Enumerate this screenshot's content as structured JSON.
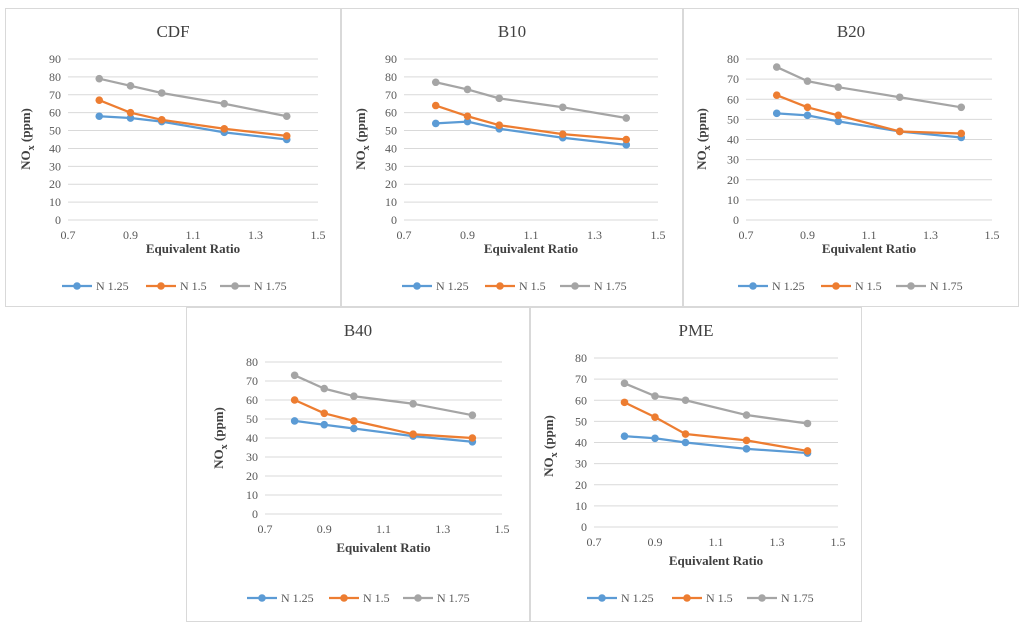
{
  "chart_data": [
    {
      "type": "line",
      "title": "CDF",
      "xlabel": "Equivalent Ratio",
      "ylabel": "NOx (ppm)",
      "ylabel_main": "NO",
      "ylabel_sub": "x",
      "ylabel_suffix": " (ppm)",
      "xlim": [
        0.7,
        1.5
      ],
      "ylim": [
        0,
        90
      ],
      "xticks": [
        "0.7",
        "0.9",
        "1.1",
        "1.3",
        "1.5"
      ],
      "yticks": [
        "0",
        "10",
        "20",
        "30",
        "40",
        "50",
        "60",
        "70",
        "80",
        "90"
      ],
      "x": [
        0.8,
        0.9,
        1.0,
        1.2,
        1.4
      ],
      "series": [
        {
          "name": "N 1.25",
          "color": "#5b9bd5",
          "values": [
            58,
            57,
            55,
            49,
            45
          ]
        },
        {
          "name": "N 1.5",
          "color": "#ed7d31",
          "values": [
            67,
            60,
            56,
            51,
            47
          ]
        },
        {
          "name": "N 1.75",
          "color": "#a5a5a5",
          "values": [
            79,
            75,
            71,
            65,
            58
          ]
        }
      ],
      "grid": true,
      "legend": "bottom"
    },
    {
      "type": "line",
      "title": "B10",
      "xlabel": "Equivalent Ratio",
      "ylabel": "NOx (ppm)",
      "ylabel_main": "NO",
      "ylabel_sub": "x",
      "ylabel_suffix": " (ppm)",
      "xlim": [
        0.7,
        1.5
      ],
      "ylim": [
        0,
        90
      ],
      "xticks": [
        "0.7",
        "0.9",
        "1.1",
        "1.3",
        "1.5"
      ],
      "yticks": [
        "0",
        "10",
        "20",
        "30",
        "40",
        "50",
        "60",
        "70",
        "80",
        "90"
      ],
      "x": [
        0.8,
        0.9,
        1.0,
        1.2,
        1.4
      ],
      "series": [
        {
          "name": "N 1.25",
          "color": "#5b9bd5",
          "values": [
            54,
            55,
            51,
            46,
            42
          ]
        },
        {
          "name": "N 1.5",
          "color": "#ed7d31",
          "values": [
            64,
            58,
            53,
            48,
            45
          ]
        },
        {
          "name": "N 1.75",
          "color": "#a5a5a5",
          "values": [
            77,
            73,
            68,
            63,
            57
          ]
        }
      ],
      "grid": true,
      "legend": "bottom"
    },
    {
      "type": "line",
      "title": "B20",
      "xlabel": "Equivalent Ratio",
      "ylabel": "NOx (ppm)",
      "ylabel_main": "NO",
      "ylabel_sub": "x",
      "ylabel_suffix": " (ppm)",
      "xlim": [
        0.7,
        1.5
      ],
      "ylim": [
        0,
        80
      ],
      "xticks": [
        "0.7",
        "0.9",
        "1.1",
        "1.3",
        "1.5"
      ],
      "yticks": [
        "0",
        "10",
        "20",
        "30",
        "40",
        "50",
        "60",
        "70",
        "80"
      ],
      "x": [
        0.8,
        0.9,
        1.0,
        1.2,
        1.4
      ],
      "series": [
        {
          "name": "N 1.25",
          "color": "#5b9bd5",
          "values": [
            53,
            52,
            49,
            44,
            41
          ]
        },
        {
          "name": "N 1.5",
          "color": "#ed7d31",
          "values": [
            62,
            56,
            52,
            44,
            43
          ]
        },
        {
          "name": "N 1.75",
          "color": "#a5a5a5",
          "values": [
            76,
            69,
            66,
            61,
            56
          ]
        }
      ],
      "grid": true,
      "legend": "bottom"
    },
    {
      "type": "line",
      "title": "B40",
      "xlabel": "Equivalent Ratio",
      "ylabel": "NOx (ppm)",
      "ylabel_main": "NO",
      "ylabel_sub": "x",
      "ylabel_suffix": " (ppm)",
      "xlim": [
        0.7,
        1.5
      ],
      "ylim": [
        0,
        80
      ],
      "xticks": [
        "0.7",
        "0.9",
        "1.1",
        "1.3",
        "1.5"
      ],
      "yticks": [
        "0",
        "10",
        "20",
        "30",
        "40",
        "50",
        "60",
        "70",
        "80"
      ],
      "x": [
        0.8,
        0.9,
        1.0,
        1.2,
        1.4
      ],
      "series": [
        {
          "name": "N 1.25",
          "color": "#5b9bd5",
          "values": [
            49,
            47,
            45,
            41,
            38
          ]
        },
        {
          "name": "N 1.5",
          "color": "#ed7d31",
          "values": [
            60,
            53,
            49,
            42,
            40
          ]
        },
        {
          "name": "N 1.75",
          "color": "#a5a5a5",
          "values": [
            73,
            66,
            62,
            58,
            52
          ]
        }
      ],
      "grid": true,
      "legend": "bottom"
    },
    {
      "type": "line",
      "title": "PME",
      "xlabel": "Equivalent Ratio",
      "ylabel": "NOx (ppm)",
      "ylabel_main": "NO",
      "ylabel_sub": "x",
      "ylabel_suffix": " (ppm)",
      "xlim": [
        0.7,
        1.5
      ],
      "ylim": [
        0,
        80
      ],
      "xticks": [
        "0.7",
        "0.9",
        "1.1",
        "1.3",
        "1.5"
      ],
      "yticks": [
        "0",
        "10",
        "20",
        "30",
        "40",
        "50",
        "60",
        "70",
        "80"
      ],
      "x": [
        0.8,
        0.9,
        1.0,
        1.2,
        1.4
      ],
      "series": [
        {
          "name": "N 1.25",
          "color": "#5b9bd5",
          "values": [
            43,
            42,
            40,
            37,
            35
          ]
        },
        {
          "name": "N 1.5",
          "color": "#ed7d31",
          "values": [
            59,
            52,
            44,
            41,
            36
          ]
        },
        {
          "name": "N 1.75",
          "color": "#a5a5a5",
          "values": [
            68,
            62,
            60,
            53,
            49
          ]
        }
      ],
      "grid": true,
      "legend": "bottom"
    }
  ]
}
